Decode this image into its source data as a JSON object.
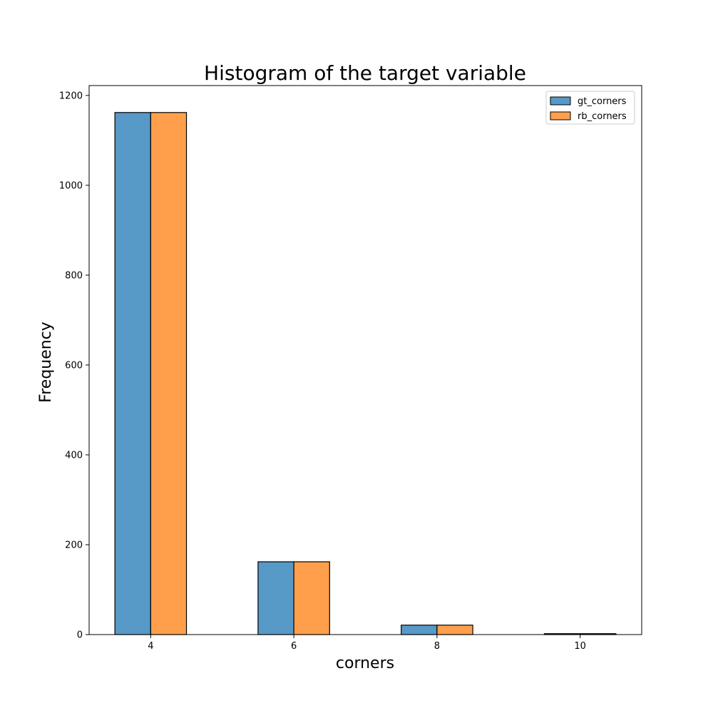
{
  "chart_data": {
    "type": "bar",
    "title": "Histogram of the target variable",
    "xlabel": "corners",
    "ylabel": "Frequency",
    "categories": [
      "4",
      "6",
      "8",
      "10"
    ],
    "x": [
      4,
      6,
      8,
      10
    ],
    "xlim": [
      3.14,
      10.86
    ],
    "ylim": [
      0,
      1222
    ],
    "yticks": [
      0,
      200,
      400,
      600,
      800,
      1000,
      1200
    ],
    "xticks": [
      4,
      6,
      8,
      10
    ],
    "bar_width": 0.5,
    "legend_position": "top-right",
    "series": [
      {
        "name": "gt_corners",
        "color": "#5799c7",
        "values": [
          1162,
          162,
          21,
          2
        ]
      },
      {
        "name": "rb_corners",
        "color": "#ff9f4b",
        "values": [
          1162,
          162,
          21,
          2
        ]
      }
    ]
  }
}
